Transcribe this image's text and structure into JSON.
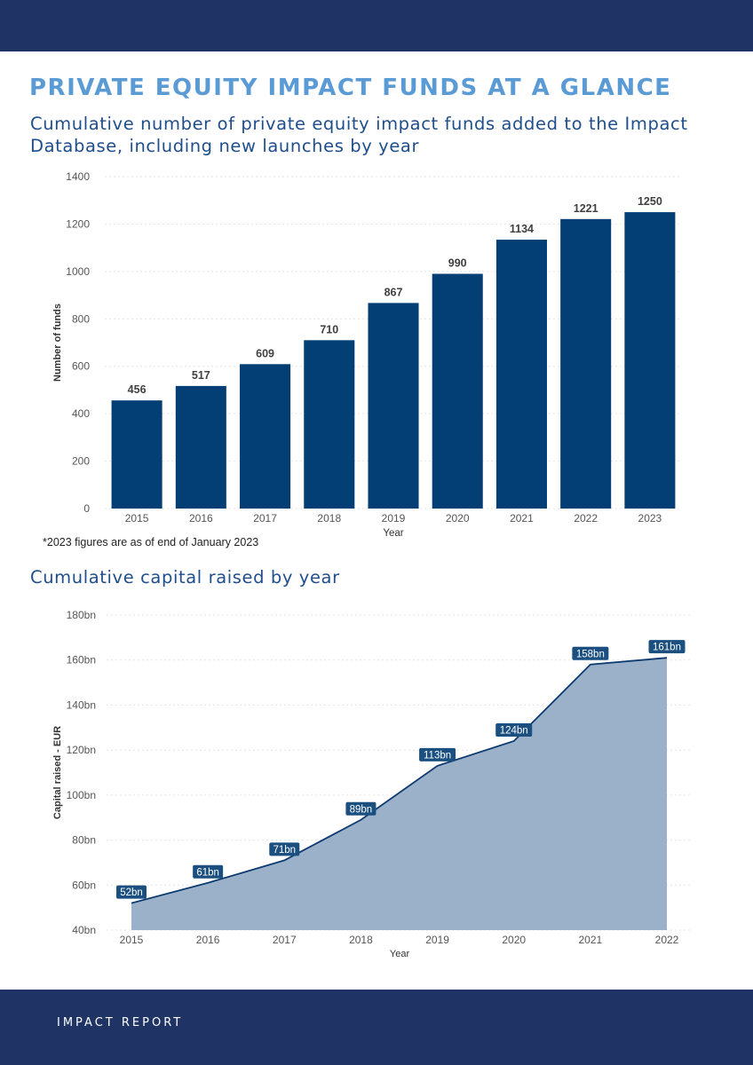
{
  "header": {
    "title": "PRIVATE EQUITY IMPACT FUNDS AT A GLANCE"
  },
  "footer": {
    "label": "IMPACT REPORT"
  },
  "colors": {
    "band": "#1f3464",
    "title": "#5b9bd5",
    "subtitle": "#1f4e8c",
    "bar": "#033e74",
    "area_fill": "#9ab1c9",
    "area_line": "#0d3b70",
    "label_box": "#1a4f80"
  },
  "charts": {
    "funds": {
      "subtitle": "Cumulative number of private equity impact funds added to the Impact Database, including new launches by year",
      "footnote": "*2023 figures are as of end of January 2023"
    },
    "capital": {
      "subtitle": "Cumulative capital raised by year"
    }
  },
  "chart_data": [
    {
      "type": "bar",
      "title": "Cumulative number of private equity impact funds added to the Impact Database, including new launches by year",
      "xlabel": "Year",
      "ylabel": "Number of funds",
      "categories": [
        "2015",
        "2016",
        "2017",
        "2018",
        "2019",
        "2020",
        "2021",
        "2022",
        "2023"
      ],
      "values": [
        456,
        517,
        609,
        710,
        867,
        990,
        1134,
        1221,
        1250
      ],
      "data_labels": [
        "456",
        "517",
        "609",
        "710",
        "867",
        "990",
        "1134",
        "1221",
        "1250"
      ],
      "ylim": [
        0,
        1400
      ],
      "yticks": [
        0,
        200,
        400,
        600,
        800,
        1000,
        1200,
        1400
      ],
      "ytick_labels": [
        "0",
        "200",
        "400",
        "600",
        "800",
        "1000",
        "1200",
        "1400"
      ],
      "grid": true
    },
    {
      "type": "area",
      "title": "Cumulative capital raised by year",
      "xlabel": "Year",
      "ylabel": "Capital raised - EUR",
      "categories": [
        "2015",
        "2016",
        "2017",
        "2018",
        "2019",
        "2020",
        "2021",
        "2022"
      ],
      "values": [
        52,
        61,
        71,
        89,
        113,
        124,
        158,
        161
      ],
      "data_labels": [
        "52bn",
        "61bn",
        "71bn",
        "89bn",
        "113bn",
        "124bn",
        "158bn",
        "161bn"
      ],
      "ylim": [
        40,
        180
      ],
      "yticks": [
        40,
        60,
        80,
        100,
        120,
        140,
        160,
        180
      ],
      "ytick_labels": [
        "40bn",
        "60bn",
        "80bn",
        "100bn",
        "120bn",
        "140bn",
        "160bn",
        "180bn"
      ],
      "grid": true
    }
  ]
}
